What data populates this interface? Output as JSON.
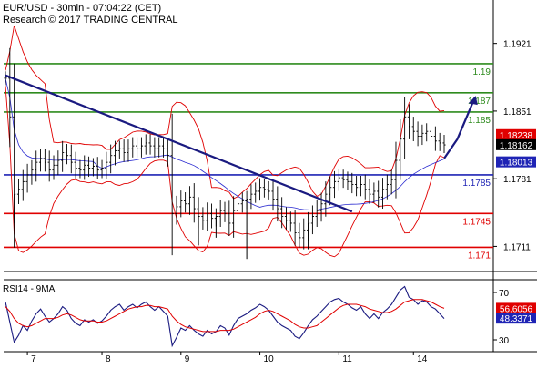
{
  "header": {
    "line1": "EUR/USD - 30min - 07:04:22 (CET)",
    "line2": "Research © 2017 TRADING CENTRAL"
  },
  "chart_data": [
    {
      "type": "candlestick",
      "ylim": [
        1.1685,
        1.1965
      ],
      "y_ticks": [
        {
          "label": "1.1921",
          "v": 1.1921
        },
        {
          "label": "1.1851",
          "v": 1.1851
        },
        {
          "label": "1.1781",
          "v": 1.1781
        },
        {
          "label": "1.1711",
          "v": 1.1711
        }
      ],
      "x_ticks": [
        "7",
        "8",
        "9",
        "10",
        "11",
        "14"
      ],
      "levels": [
        {
          "label": "1.19",
          "v": 1.19,
          "color": "#2e8b1e"
        },
        {
          "label": "1.187",
          "v": 1.187,
          "color": "#2e8b1e"
        },
        {
          "label": "1.185",
          "v": 1.185,
          "color": "#2e8b1e"
        },
        {
          "label": "1.1785",
          "v": 1.1785,
          "color": "#1f24b5"
        },
        {
          "label": "1.1745",
          "v": 1.1745,
          "color": "#e00000"
        },
        {
          "label": "1.171",
          "v": 1.171,
          "color": "#e00000"
        }
      ],
      "price_boxes": [
        {
          "label": "1.18238",
          "v": 1.18238,
          "bg": "#e00000",
          "fg": "#ffffff"
        },
        {
          "label": "1.18162",
          "v": 1.18162,
          "bg": "#000000",
          "fg": "#ffffff"
        },
        {
          "label": "1.18013",
          "v": 1.18013,
          "bg": "#1f24b5",
          "fg": "#ffffff"
        }
      ],
      "trendline": {
        "x": [
          0,
          79
        ],
        "y": [
          1.1888,
          1.1747
        ],
        "color": "#1a1a80"
      },
      "forecast_path": {
        "x": [
          100,
          103,
          107
        ],
        "y": [
          1.1802,
          1.1822,
          1.1865
        ],
        "color": "#1a1a80"
      },
      "close": [
        1.1885,
        1.1845,
        1.1765,
        1.177,
        1.1778,
        1.1785,
        1.179,
        1.1798,
        1.1802,
        1.1798,
        1.179,
        1.1795,
        1.18,
        1.1808,
        1.1805,
        1.1798,
        1.1792,
        1.179,
        1.1795,
        1.1792,
        1.1794,
        1.179,
        1.1792,
        1.1798,
        1.1805,
        1.181,
        1.1812,
        1.1808,
        1.1812,
        1.1815,
        1.1812,
        1.1815,
        1.1818,
        1.1815,
        1.1812,
        1.1815,
        1.1812,
        1.1805,
        1.1745,
        1.1752,
        1.1758,
        1.1755,
        1.1762,
        1.175,
        1.1742,
        1.1738,
        1.1745,
        1.174,
        1.1742,
        1.1748,
        1.1745,
        1.1735,
        1.1748,
        1.1755,
        1.1758,
        1.176,
        1.1765,
        1.1768,
        1.1772,
        1.177,
        1.1768,
        1.176,
        1.175,
        1.1742,
        1.1738,
        1.1735,
        1.1725,
        1.172,
        1.1728,
        1.1735,
        1.1742,
        1.1748,
        1.1755,
        1.1765,
        1.1772,
        1.1778,
        1.1782,
        1.178,
        1.1778,
        1.1775,
        1.1772,
        1.1775,
        1.177,
        1.1765,
        1.1768,
        1.1762,
        1.177,
        1.1775,
        1.178,
        1.18,
        1.1822,
        1.1845,
        1.1835,
        1.183,
        1.1825,
        1.1828,
        1.183,
        1.1825,
        1.182,
        1.1818,
        1.1816
      ],
      "lows": [
        {
          "i": 44,
          "v": 1.1712
        },
        {
          "i": 48,
          "v": 1.172
        },
        {
          "i": 55,
          "v": 1.1698
        },
        {
          "i": 69,
          "v": 1.1708
        },
        {
          "i": 2,
          "v": 1.1735
        }
      ]
    },
    {
      "type": "line",
      "title": "RSI14 - 9MA",
      "ylim": [
        20,
        80
      ],
      "y_ticks": [
        {
          "label": "70",
          "v": 70
        },
        {
          "label": "30",
          "v": 30
        }
      ],
      "value_boxes": [
        {
          "label": "56.6056",
          "v": 56.6056,
          "bg": "#e00000",
          "fg": "#ffffff"
        },
        {
          "label": "48.3371",
          "v": 48.3371,
          "bg": "#1f24b5",
          "fg": "#ffffff"
        }
      ],
      "series": [
        {
          "color": "#1a1a80",
          "values": [
            62,
            45,
            28,
            34,
            42,
            38,
            46,
            52,
            56,
            50,
            45,
            48,
            52,
            58,
            55,
            48,
            44,
            42,
            47,
            45,
            47,
            44,
            46,
            50,
            55,
            58,
            60,
            55,
            58,
            60,
            57,
            60,
            62,
            58,
            55,
            58,
            54,
            50,
            25,
            32,
            40,
            38,
            42,
            38,
            35,
            33,
            38,
            35,
            37,
            42,
            40,
            34,
            42,
            48,
            50,
            52,
            55,
            57,
            60,
            58,
            55,
            50,
            45,
            42,
            40,
            38,
            33,
            31,
            36,
            42,
            47,
            50,
            54,
            58,
            62,
            64,
            65,
            62,
            60,
            57,
            55,
            58,
            52,
            48,
            52,
            48,
            53,
            56,
            60,
            66,
            72,
            75,
            66,
            64,
            60,
            63,
            62,
            58,
            56,
            52,
            48
          ]
        },
        {
          "color": "#e00000",
          "values": [
            58,
            54,
            48,
            44,
            42,
            41,
            42,
            44,
            46,
            48,
            48,
            48,
            49,
            51,
            52,
            51,
            49,
            47,
            46,
            46,
            46,
            45,
            45,
            46,
            48,
            50,
            52,
            54,
            56,
            57,
            58,
            58,
            59,
            59,
            58,
            58,
            57,
            56,
            50,
            46,
            43,
            41,
            40,
            39,
            38,
            37,
            37,
            37,
            37,
            38,
            38,
            38,
            39,
            41,
            43,
            45,
            47,
            49,
            52,
            54,
            55,
            54,
            52,
            50,
            48,
            46,
            43,
            41,
            40,
            40,
            41,
            42,
            45,
            48,
            51,
            54,
            57,
            59,
            60,
            60,
            60,
            59,
            58,
            56,
            55,
            54,
            53,
            53,
            54,
            56,
            59,
            62,
            63,
            64,
            64,
            64,
            63,
            62,
            60,
            58,
            56.6
          ]
        }
      ]
    }
  ]
}
